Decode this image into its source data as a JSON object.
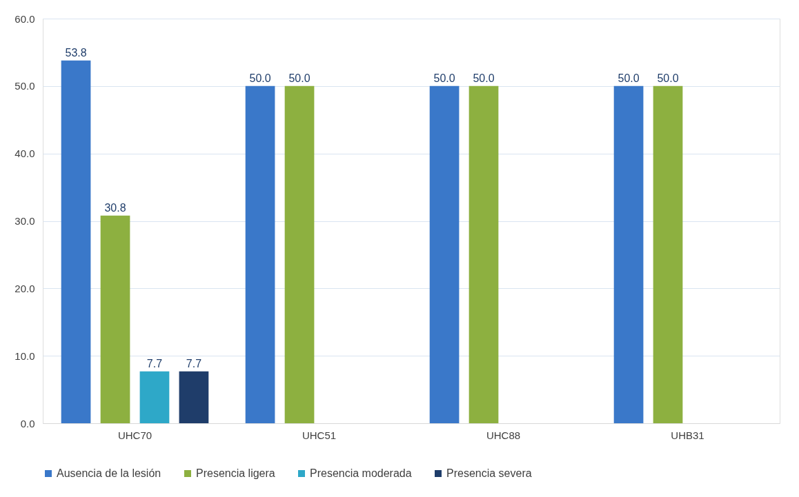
{
  "chart_data": {
    "type": "bar",
    "categories": [
      "UHC70",
      "UHC51",
      "UHC88",
      "UHB31"
    ],
    "series": [
      {
        "name": "Ausencia de la lesión",
        "color": "#3a78c9",
        "values": [
          53.8,
          50.0,
          50.0,
          50.0
        ],
        "value_labels": [
          "53.8",
          "50.0",
          "50.0",
          "50.0"
        ]
      },
      {
        "name": "Presencia ligera",
        "color": "#8db040",
        "values": [
          30.8,
          50.0,
          50.0,
          50.0
        ],
        "value_labels": [
          "30.8",
          "50.0",
          "50.0",
          "50.0"
        ]
      },
      {
        "name": "Presencia moderada",
        "color": "#2ea8c8",
        "values": [
          7.7,
          null,
          null,
          null
        ],
        "value_labels": [
          "7.7",
          null,
          null,
          null
        ]
      },
      {
        "name": "Presencia severa",
        "color": "#1f3d6a",
        "values": [
          7.7,
          null,
          null,
          null
        ],
        "value_labels": [
          "7.7",
          null,
          null,
          null
        ]
      }
    ],
    "ylim": [
      0,
      60
    ],
    "yticks": [
      {
        "value": 0,
        "label": "0.0"
      },
      {
        "value": 10,
        "label": "10.0"
      },
      {
        "value": 20,
        "label": "20.0"
      },
      {
        "value": 30,
        "label": "30.0"
      },
      {
        "value": 40,
        "label": "40.0"
      },
      {
        "value": 50,
        "label": "50.0"
      },
      {
        "value": 60,
        "label": "60.0"
      }
    ],
    "grid": "y",
    "legend": "bottom"
  }
}
